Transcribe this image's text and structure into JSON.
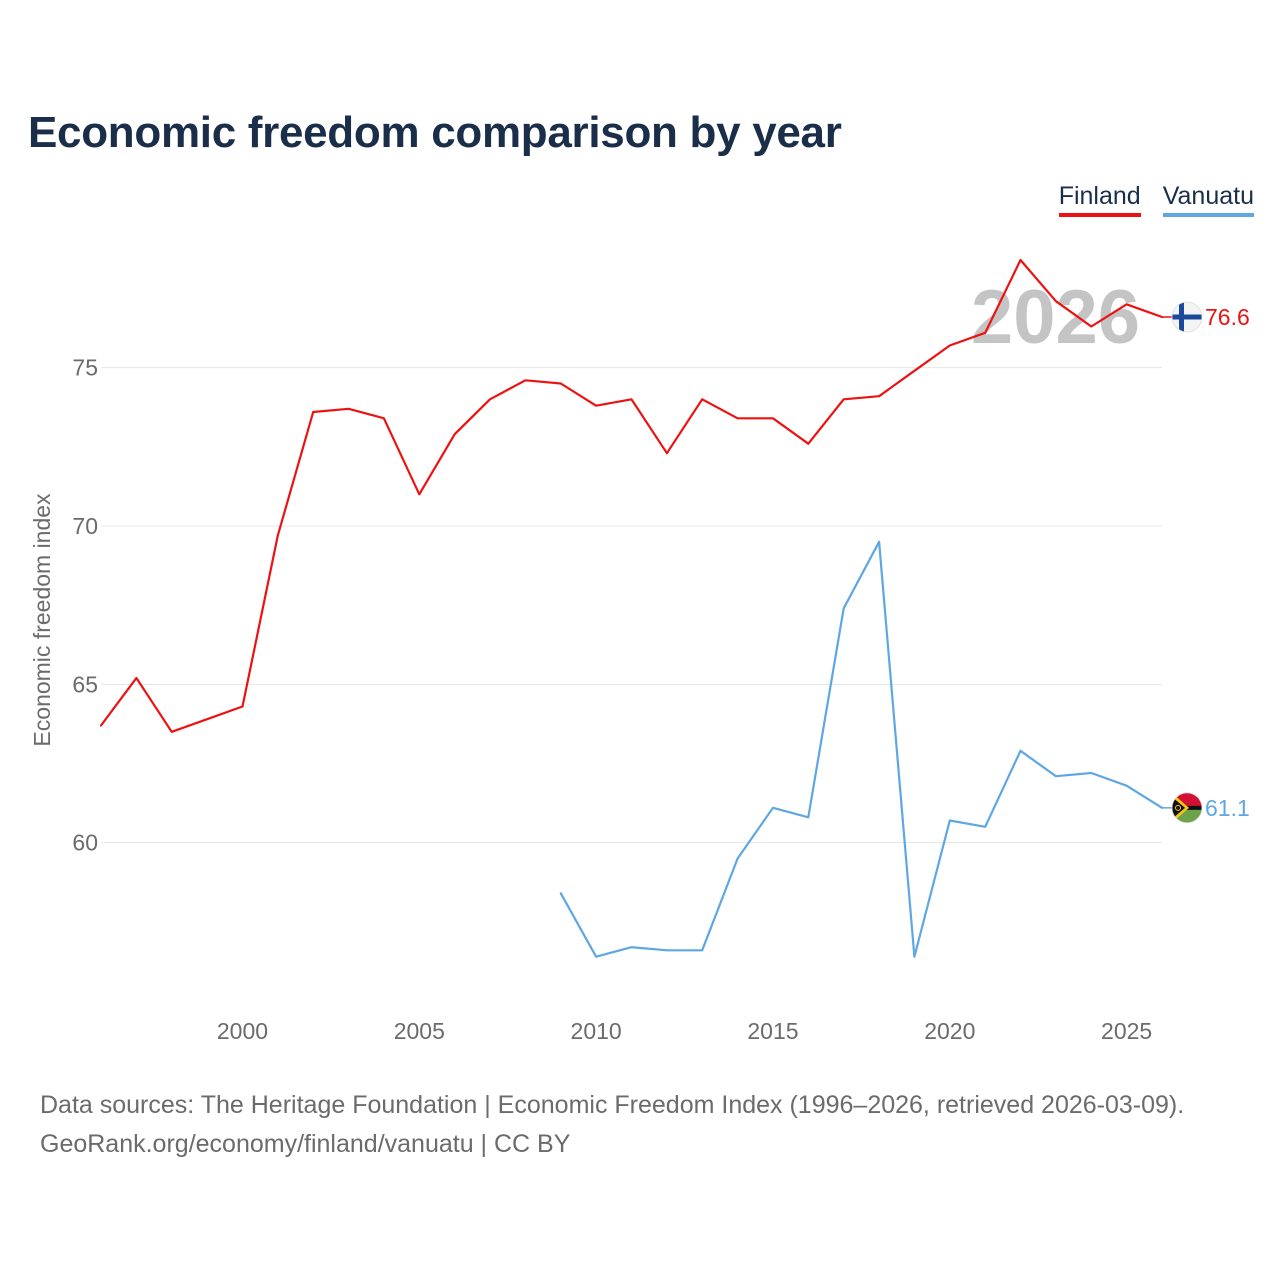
{
  "chart_data": {
    "type": "line",
    "title": "Economic freedom comparison by year",
    "ylabel": "Economic freedom index",
    "xlabel": "",
    "xlim": [
      1996,
      2026
    ],
    "ylim": [
      55,
      79
    ],
    "xticks": [
      "2000",
      "2005",
      "2010",
      "2015",
      "2020",
      "2025"
    ],
    "yticks": [
      "60",
      "65",
      "70",
      "75"
    ],
    "year_watermark": "2026",
    "grid": true,
    "legend": "top-right",
    "series": [
      {
        "name": "Finland",
        "color": "#ee1111",
        "end_label": "76.6",
        "flag": "finland-flag",
        "x": [
          1996,
          1997,
          1998,
          1999,
          2000,
          2001,
          2002,
          2003,
          2004,
          2005,
          2006,
          2007,
          2008,
          2009,
          2010,
          2011,
          2012,
          2013,
          2014,
          2015,
          2016,
          2017,
          2018,
          2019,
          2020,
          2021,
          2022,
          2023,
          2024,
          2025,
          2026
        ],
        "values": [
          63.7,
          65.2,
          63.5,
          63.9,
          64.3,
          69.7,
          73.6,
          73.7,
          73.4,
          71.0,
          72.9,
          74.0,
          74.6,
          74.5,
          73.8,
          74.0,
          72.3,
          74.0,
          73.4,
          73.4,
          72.6,
          74.0,
          74.1,
          74.9,
          75.7,
          76.1,
          78.4,
          77.1,
          76.3,
          77.0,
          76.6
        ]
      },
      {
        "name": "Vanuatu",
        "color": "#5ea6e4",
        "end_label": "61.1",
        "flag": "vanuatu-flag",
        "x": [
          2009,
          2010,
          2011,
          2012,
          2013,
          2014,
          2015,
          2016,
          2017,
          2018,
          2019,
          2020,
          2021,
          2022,
          2023,
          2024,
          2025,
          2026
        ],
        "values": [
          58.4,
          56.4,
          56.7,
          56.6,
          56.6,
          59.5,
          61.1,
          60.8,
          67.4,
          69.5,
          56.4,
          60.7,
          60.5,
          62.9,
          62.1,
          62.2,
          61.8,
          61.1
        ]
      }
    ]
  },
  "footer": {
    "line1": "Data sources: The Heritage Foundation | Economic Freedom Index (1996–2026, retrieved 2026-03-09).",
    "line2": "GeoRank.org/economy/finland/vanuatu | CC BY"
  }
}
